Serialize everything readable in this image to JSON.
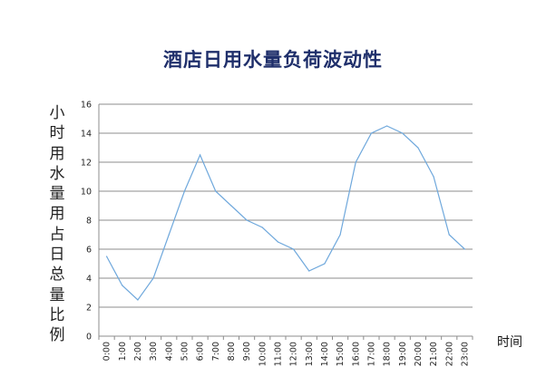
{
  "chart_data": {
    "type": "line",
    "title": "酒店日用水量负荷波动性",
    "ylabel": "小时用水量用占日总量比例",
    "xlabel": "时间",
    "ylim": [
      0,
      16
    ],
    "y_ticks": [
      "0",
      "2",
      "4",
      "6",
      "8",
      "10",
      "12",
      "14",
      "16"
    ],
    "categories": [
      "0:00",
      "1:00",
      "2:00",
      "3:00",
      "4:00",
      "5:00",
      "6:00",
      "7:00",
      "8:00",
      "9:00",
      "10:00",
      "11:00",
      "12:00",
      "13:00",
      "14:00",
      "15:00",
      "16:00",
      "17:00",
      "18:00",
      "19:00",
      "20:00",
      "21:00",
      "22:00",
      "23:00"
    ],
    "series": [
      {
        "color": "#6fa8dc",
        "values": [
          5.5,
          3.5,
          2.5,
          4,
          7,
          10,
          12.5,
          10,
          9,
          8,
          7.5,
          6.5,
          6,
          4.5,
          5,
          7,
          12,
          14,
          14.5,
          14,
          13,
          11,
          7,
          6
        ]
      }
    ],
    "grid": true,
    "legend": "none"
  }
}
